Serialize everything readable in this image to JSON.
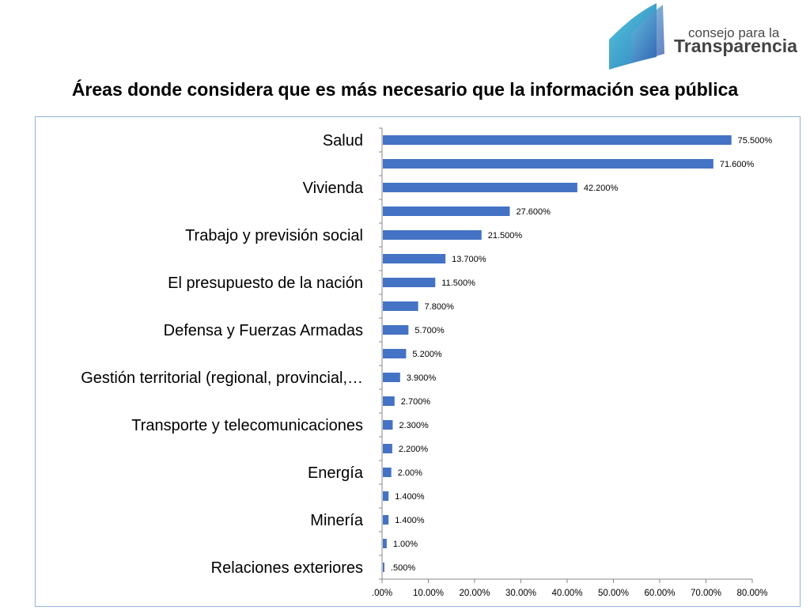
{
  "branding": {
    "logo_line1": "consejo para la",
    "logo_line2": "Transparencia"
  },
  "colors": {
    "bar": "#4472c4",
    "frame": "#8eb4d9"
  },
  "chart_data": {
    "type": "bar",
    "orientation": "horizontal",
    "title": "Áreas donde considera que es más necesario que la información sea pública",
    "xlabel": "",
    "ylabel": "",
    "grid": false,
    "legend": "none",
    "xlim": [
      0,
      80
    ],
    "x_ticks": [
      ".00%",
      "10.00%",
      "20.00%",
      "30.00%",
      "40.00%",
      "50.00%",
      "60.00%",
      "70.00%",
      "80.00%"
    ],
    "x_tick_values": [
      0,
      10,
      20,
      30,
      40,
      50,
      60,
      70,
      80
    ],
    "category_labels": [
      "Salud",
      "",
      "Vivienda",
      "",
      "Trabajo y previsión social",
      "",
      "El presupuesto de la nación",
      "",
      "Defensa y Fuerzas Armadas",
      "",
      "Gestión territorial (regional, provincial,…",
      "",
      "Transporte y telecomunicaciones",
      "",
      "Energía",
      "",
      "Minería",
      "",
      "Relaciones exteriores"
    ],
    "values": [
      75.5,
      71.6,
      42.2,
      27.6,
      21.5,
      13.7,
      11.5,
      7.8,
      5.7,
      5.2,
      3.9,
      2.7,
      2.3,
      2.2,
      2.0,
      1.4,
      1.4,
      1.0,
      0.5
    ],
    "data_labels": [
      "75.500%",
      "71.600%",
      "42.200%",
      "27.600%",
      "21.500%",
      "13.700%",
      "11.500%",
      "7.800%",
      "5.700%",
      "5.200%",
      "3.900%",
      "2.700%",
      "2.300%",
      "2.200%",
      "2.00%",
      "1.400%",
      "1.400%",
      "1.00%",
      ".500%"
    ]
  }
}
